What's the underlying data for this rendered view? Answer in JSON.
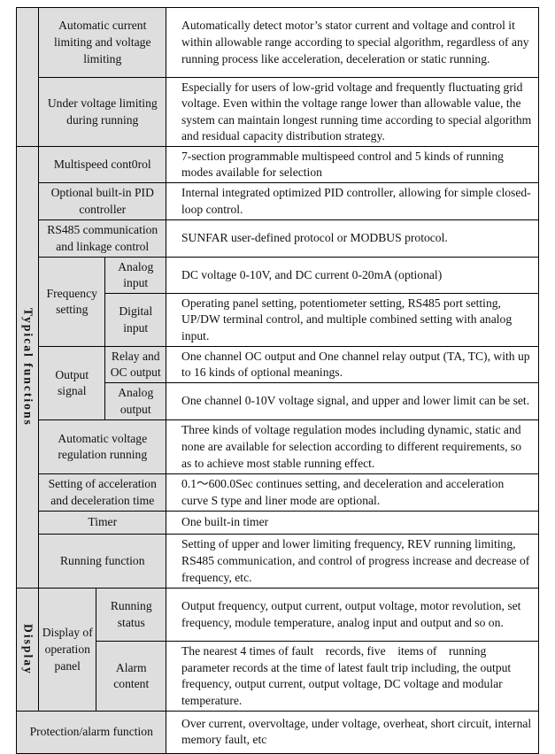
{
  "rows": [
    {
      "label": "Automatic current limiting and voltage limiting",
      "desc": "Automatically detect motor’s stator current and voltage and control it within allowable range according to special algorithm, regardless of any running process like acceleration, deceleration or static running."
    },
    {
      "label": "Under voltage limiting during running",
      "desc": "Especially for users of low-grid voltage and frequently fluctuating grid voltage. Even within the voltage range lower than allowable value, the system can maintain longest running time according to special algorithm and residual capacity distribution strategy."
    }
  ],
  "typical_functions": {
    "group_label": "Typical functions",
    "rows": [
      {
        "label": "Multispeed cont0rol",
        "desc": "7-section programmable multispeed control and 5 kinds of running modes available for selection"
      },
      {
        "label": "Optional built-in PID controller",
        "desc": "Internal integrated optimized PID controller, allowing for simple closed-loop control."
      },
      {
        "label": "RS485 communication and linkage control",
        "desc": "SUNFAR user-defined protocol or MODBUS protocol."
      }
    ],
    "frequency_setting": {
      "label": "Frequency setting",
      "rows": [
        {
          "label": "Analog input",
          "desc": "DC voltage 0-10V, and DC current 0-20mA (optional)"
        },
        {
          "label": "Digital input",
          "desc": "Operating panel setting, potentiometer setting, RS485 port setting, UP/DW terminal control, and multiple combined setting with analog input."
        }
      ]
    },
    "output_signal": {
      "label": "Output signal",
      "rows": [
        {
          "label": "Relay and OC output",
          "desc": "One channel OC output and One channel relay output (TA, TC), with up to 16 kinds of optional meanings."
        },
        {
          "label": "Analog output",
          "desc": "One channel 0-10V voltage signal, and upper and lower limit can be set."
        }
      ]
    },
    "rows2": [
      {
        "label": "Automatic voltage regulation running",
        "desc": "Three kinds of voltage regulation modes including dynamic, static and none are available for selection according to different requirements, so as to achieve most stable running effect."
      },
      {
        "label": "Setting of acceleration and deceleration time",
        "desc": "0.1～600.0Sec continues setting, and deceleration and acceleration curve S type and liner mode are optional."
      },
      {
        "label": "Timer",
        "desc": "One built-in timer"
      },
      {
        "label": "Running function",
        "desc": "Setting of upper and lower limiting frequency, REV running limiting, RS485 communication, and control of progress increase and decrease of frequency, etc."
      }
    ]
  },
  "display": {
    "group_label": "Display",
    "panel_label": "Display of operation panel",
    "rows": [
      {
        "label": "Running status",
        "desc": "Output frequency, output current, output voltage, motor revolution, set frequency, module temperature, analog input and output and so on."
      },
      {
        "label": "Alarm content",
        "desc": "The nearest 4 times of fault    records, five    items of    running parameter records at the time of latest fault trip including, the output frequency, output current, output voltage, DC voltage and modular temperature."
      }
    ]
  },
  "protection": {
    "label": "Protection/alarm function",
    "desc": "Over current, overvoltage, under voltage, overheat, short circuit, internal memory fault, etc"
  }
}
